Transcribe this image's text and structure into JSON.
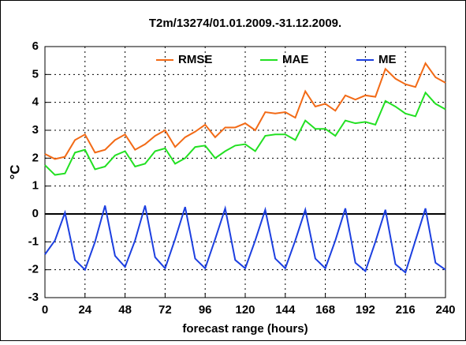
{
  "chart_data": {
    "type": "line",
    "title": "T2m/13274/01.01.2009.-31.12.2009.",
    "x_label": "forecast range (hours)",
    "y_label": "°C",
    "x": [
      0,
      6,
      12,
      18,
      24,
      30,
      36,
      42,
      48,
      54,
      60,
      66,
      72,
      78,
      84,
      90,
      96,
      102,
      108,
      114,
      120,
      126,
      132,
      138,
      144,
      150,
      156,
      162,
      168,
      174,
      180,
      186,
      192,
      198,
      204,
      210,
      216,
      222,
      228,
      234,
      240
    ],
    "series": [
      {
        "name": "RMSE",
        "color": "#f26a16",
        "values": [
          2.15,
          1.97,
          2.05,
          2.65,
          2.85,
          2.2,
          2.3,
          2.65,
          2.85,
          2.3,
          2.5,
          2.8,
          3.0,
          2.4,
          2.75,
          2.95,
          3.2,
          2.75,
          3.1,
          3.1,
          3.25,
          3.0,
          3.65,
          3.6,
          3.65,
          3.45,
          4.4,
          3.85,
          3.95,
          3.7,
          4.25,
          4.1,
          4.25,
          4.2,
          5.2,
          4.85,
          4.65,
          4.55,
          5.4,
          4.9,
          4.7
        ]
      },
      {
        "name": "MAE",
        "color": "#22e022",
        "values": [
          1.75,
          1.4,
          1.45,
          2.2,
          2.3,
          1.6,
          1.7,
          2.1,
          2.25,
          1.7,
          1.8,
          2.25,
          2.35,
          1.8,
          2.0,
          2.4,
          2.45,
          2.0,
          2.25,
          2.45,
          2.5,
          2.25,
          2.8,
          2.85,
          2.85,
          2.65,
          3.35,
          3.05,
          3.05,
          2.8,
          3.35,
          3.25,
          3.3,
          3.2,
          4.05,
          3.85,
          3.6,
          3.5,
          4.35,
          3.95,
          3.75
        ]
      },
      {
        "name": "ME",
        "color": "#1c3fe0",
        "values": [
          -1.45,
          -0.95,
          0.05,
          -1.65,
          -2.0,
          -1.0,
          0.3,
          -1.5,
          -1.9,
          -0.95,
          0.3,
          -1.55,
          -1.95,
          -0.9,
          0.25,
          -1.6,
          -1.95,
          -0.9,
          0.2,
          -1.65,
          -1.95,
          -0.95,
          0.15,
          -1.6,
          -1.95,
          -0.95,
          0.15,
          -1.6,
          -1.95,
          -0.95,
          0.2,
          -1.75,
          -2.05,
          -1.0,
          0.15,
          -1.8,
          -2.1,
          -0.95,
          0.2,
          -1.75,
          -2.0
        ]
      }
    ],
    "xlim": [
      0,
      240
    ],
    "xticks": [
      0,
      24,
      48,
      72,
      96,
      120,
      144,
      168,
      192,
      216,
      240
    ],
    "ylim": [
      -3,
      6
    ],
    "yticks": [
      -3,
      -2,
      -1,
      0,
      1,
      2,
      3,
      4,
      5,
      6
    ],
    "grid": true,
    "zero_line": true,
    "legend": "top"
  }
}
